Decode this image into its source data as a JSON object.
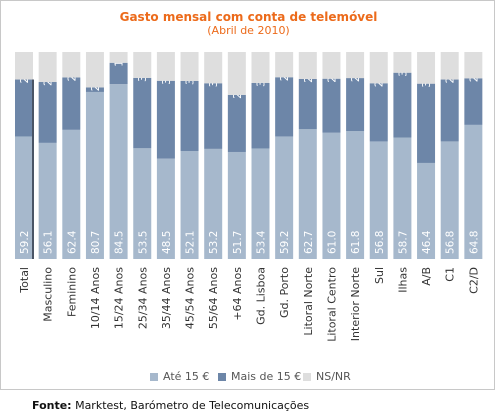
{
  "chart_data": {
    "type": "bar",
    "stacked": true,
    "percent_stacked": true,
    "title": "Gasto mensal com conta de telemóvel",
    "subtitle": "(Abril de 2010)",
    "categories": [
      "Total",
      "Masculino",
      "Feminino",
      "10/14 Anos",
      "15/24 Anos",
      "25/34 Anos",
      "35/44 Anos",
      "45/54 Anos",
      "55/64 Anos",
      "+64 Anos",
      "Gd. Lisboa",
      "Gd. Porto",
      "Litoral Norte",
      "Litoral Centro",
      "Interior Norte",
      "Sul",
      "Ilhas",
      "A/B",
      "C1",
      "C2/D"
    ],
    "series": [
      {
        "name": "Até 15 €",
        "color": "#a6b8cc",
        "values": [
          59.2,
          56.1,
          62.4,
          80.7,
          84.5,
          53.5,
          48.5,
          52.1,
          53.2,
          51.7,
          53.4,
          59.2,
          62.7,
          61.0,
          61.8,
          56.8,
          58.7,
          46.4,
          56.8,
          64.8
        ]
      },
      {
        "name": "Mais de 15 €",
        "color": "#6d86a8",
        "values": [
          27.5,
          29.4,
          25.3,
          2.2,
          10.3,
          34.0,
          37.6,
          33.9,
          31.7,
          27.6,
          31.7,
          28.6,
          24.3,
          26.1,
          25.6,
          28.1,
          31.3,
          38.3,
          29.9,
          22.5
        ]
      },
      {
        "name": "NS/NR",
        "color": "#dedede",
        "values": [
          13.3,
          14.5,
          12.3,
          17.1,
          5.2,
          12.5,
          13.9,
          14.0,
          15.1,
          20.7,
          14.9,
          12.2,
          13.0,
          12.9,
          12.6,
          15.1,
          10.0,
          15.3,
          13.3,
          12.7
        ]
      }
    ],
    "ylim": [
      0,
      100
    ],
    "legend_position": "bottom",
    "grid": false
  },
  "source": {
    "label": "Fonte:",
    "text": " Marktest, Barómetro de Telecomunicações"
  }
}
